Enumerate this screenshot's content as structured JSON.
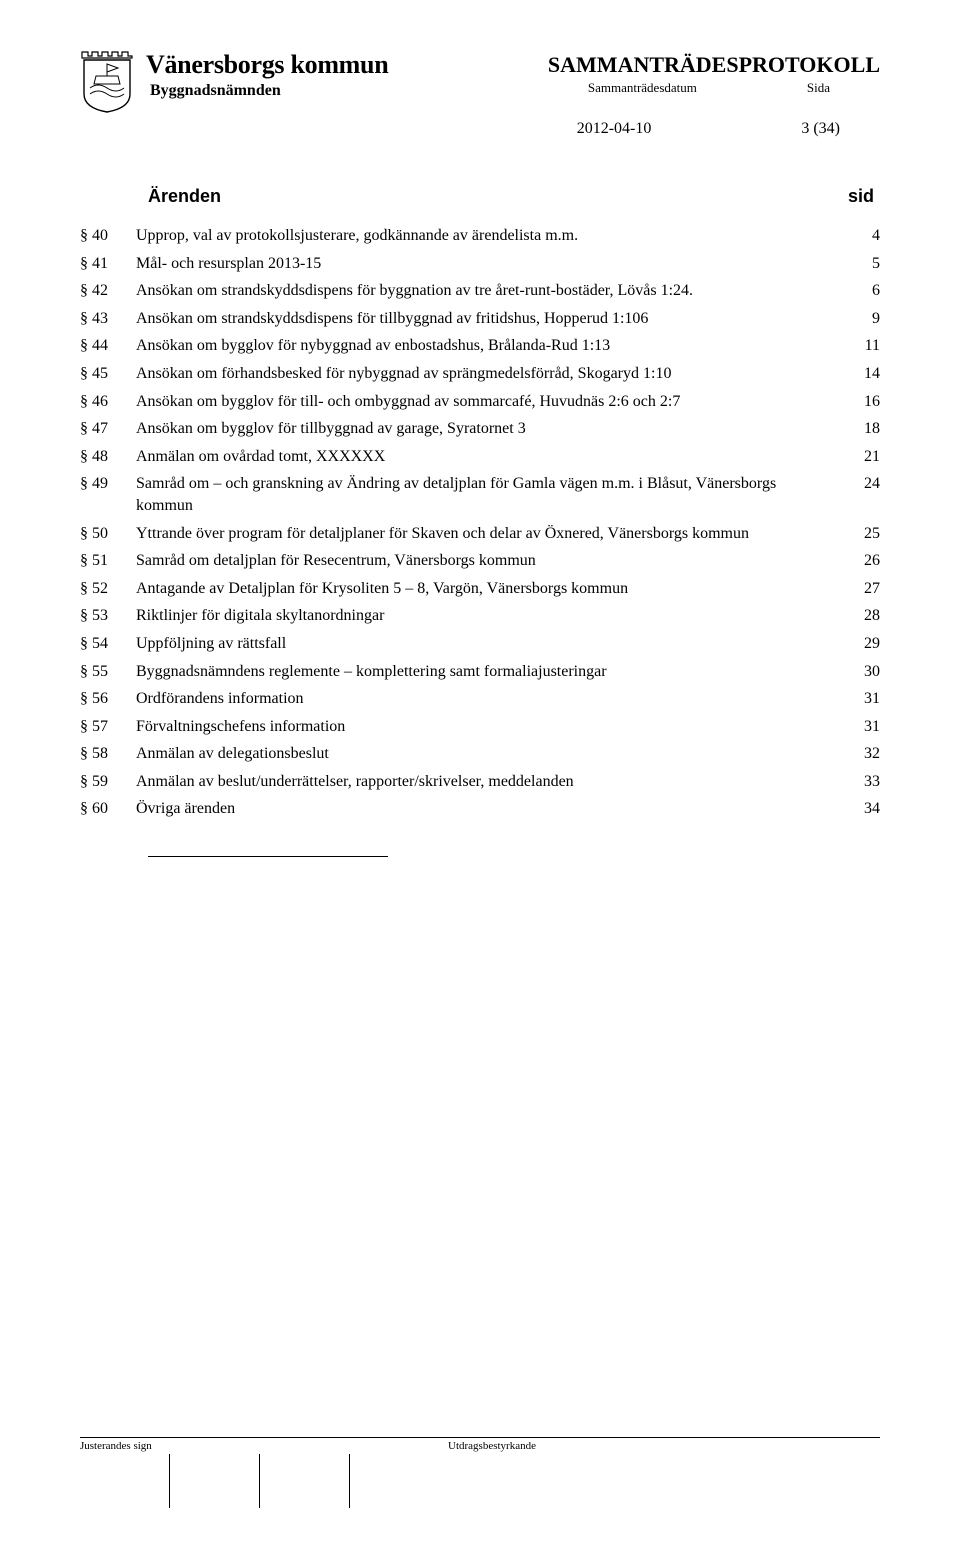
{
  "header": {
    "municipality": "Vänersborgs kommun",
    "committee": "Byggnadsnämnden",
    "protocol_title": "SAMMANTRÄDESPROTOKOLL",
    "meta_date_label": "Sammanträdesdatum",
    "meta_page_label": "Sida",
    "date": "2012-04-10",
    "page_info": "3 (34)"
  },
  "section_header": {
    "title": "Ärenden",
    "page_col": "sid"
  },
  "toc": [
    {
      "section": "§ 40",
      "text": "Upprop, val av protokollsjusterare, godkännande av ärendelista m.m.",
      "page": "4"
    },
    {
      "section": "§ 41",
      "text": "Mål- och resursplan 2013-15",
      "page": "5"
    },
    {
      "section": "§ 42",
      "text": "Ansökan om strandskyddsdispens för byggnation av tre året-runt-bostäder, Lövås 1:24.",
      "page": "6"
    },
    {
      "section": "§ 43",
      "text": "Ansökan om strandskyddsdispens för tillbyggnad av fritidshus, Hopperud 1:106",
      "page": "9"
    },
    {
      "section": "§ 44",
      "text": "Ansökan om bygglov för nybyggnad av enbostadshus, Brålanda-Rud 1:13",
      "page": "11"
    },
    {
      "section": "§ 45",
      "text": "Ansökan om förhandsbesked för nybyggnad av sprängmedelsförråd, Skogaryd 1:10",
      "page": "14"
    },
    {
      "section": "§ 46",
      "text": "Ansökan om bygglov för till- och ombyggnad av sommarcafé, Huvudnäs 2:6 och 2:7",
      "page": "16"
    },
    {
      "section": "§ 47",
      "text": "Ansökan om bygglov för tillbyggnad av garage, Syratornet 3",
      "page": "18"
    },
    {
      "section": "§ 48",
      "text": "Anmälan om ovårdad tomt, XXXXXX",
      "page": "21"
    },
    {
      "section": "§ 49",
      "text": "Samråd om – och granskning av Ändring av detaljplan för Gamla vägen m.m. i Blåsut, Vänersborgs kommun",
      "page": "24"
    },
    {
      "section": "§ 50",
      "text": "Yttrande över program för detaljplaner för Skaven och delar av Öxnered, Vänersborgs kommun",
      "page": "25"
    },
    {
      "section": "§ 51",
      "text": "Samråd om detaljplan för Resecentrum, Vänersborgs kommun",
      "page": "26"
    },
    {
      "section": "§ 52",
      "text": "Antagande av Detaljplan för Krysoliten 5 – 8, Vargön, Vänersborgs kommun",
      "page": "27"
    },
    {
      "section": "§ 53",
      "text": "Riktlinjer för digitala skyltanordningar",
      "page": "28"
    },
    {
      "section": "§ 54",
      "text": "Uppföljning av rättsfall",
      "page": "29"
    },
    {
      "section": "§ 55",
      "text": "Byggnadsnämndens reglemente – komplettering samt formaliajusteringar",
      "page": "30"
    },
    {
      "section": "§ 56",
      "text": "Ordförandens information",
      "page": "31"
    },
    {
      "section": "§ 57",
      "text": "Förvaltningschefens information",
      "page": "31"
    },
    {
      "section": "§ 58",
      "text": "Anmälan av delegationsbeslut",
      "page": "32"
    },
    {
      "section": "§ 59",
      "text": "Anmälan av beslut/underrättelser, rapporter/skrivelser, meddelanden",
      "page": "33"
    },
    {
      "section": "§ 60",
      "text": "Övriga ärenden",
      "page": "34"
    }
  ],
  "footer": {
    "left_label": "Justerandes sign",
    "right_label": "Utdragsbestyrkande"
  },
  "colors": {
    "text": "#000000",
    "background": "#ffffff",
    "line": "#000000"
  }
}
